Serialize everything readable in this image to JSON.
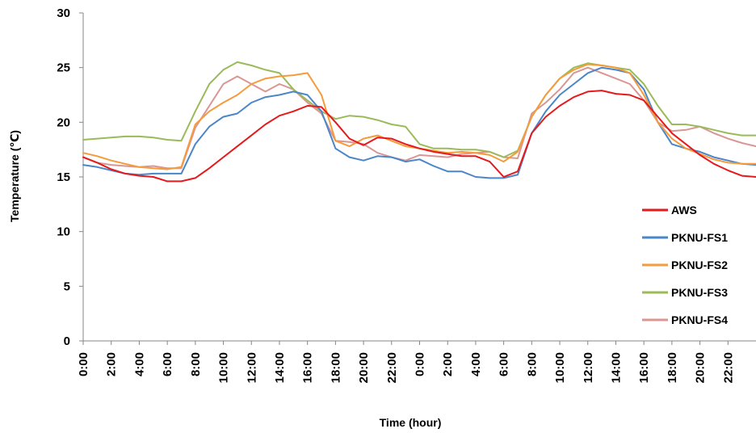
{
  "chart_data": {
    "type": "line",
    "title": "",
    "xlabel": "Time (hour)",
    "ylabel": "Temperature (℃)",
    "ylim": [
      0,
      30
    ],
    "yticks": [
      0,
      5,
      10,
      15,
      20,
      25,
      30
    ],
    "x_tick_labels": [
      "0:00",
      "2:00",
      "4:00",
      "6:00",
      "8:00",
      "10:00",
      "12:00",
      "14:00",
      "16:00",
      "18:00",
      "20:00",
      "22:00",
      "0:00",
      "2:00",
      "4:00",
      "6:00",
      "8:00",
      "10:00",
      "12:00",
      "14:00",
      "16:00",
      "18:00",
      "20:00",
      "22:00"
    ],
    "x_hours": [
      0,
      1,
      2,
      3,
      4,
      5,
      6,
      7,
      8,
      9,
      10,
      11,
      12,
      13,
      14,
      15,
      16,
      17,
      18,
      19,
      20,
      21,
      22,
      23,
      24,
      25,
      26,
      27,
      28,
      29,
      30,
      31,
      32,
      33,
      34,
      35,
      36,
      37,
      38,
      39,
      40,
      41,
      42,
      43,
      44,
      45,
      46,
      47,
      48
    ],
    "xlim": [
      0,
      48
    ],
    "grid": false,
    "legend_position": "right",
    "series": [
      {
        "name": "AWS",
        "color": "#e41a1c",
        "values": [
          16.8,
          16.3,
          15.7,
          15.3,
          15.1,
          15.0,
          14.6,
          14.6,
          14.9,
          15.8,
          16.8,
          17.8,
          18.8,
          19.8,
          20.6,
          21.0,
          21.5,
          21.4,
          20.0,
          18.5,
          17.9,
          18.6,
          18.5,
          18.0,
          17.6,
          17.3,
          17.1,
          16.9,
          16.9,
          16.4,
          15.0,
          15.5,
          19.0,
          20.5,
          21.5,
          22.3,
          22.8,
          22.9,
          22.6,
          22.5,
          22.0,
          20.5,
          19.0,
          18.0,
          17.0,
          16.2,
          15.6,
          15.1,
          15.0
        ]
      },
      {
        "name": "PKNU-FS1",
        "color": "#4a86c8",
        "values": [
          16.1,
          15.9,
          15.6,
          15.3,
          15.2,
          15.3,
          15.3,
          15.3,
          18.0,
          19.6,
          20.5,
          20.8,
          21.8,
          22.3,
          22.5,
          22.8,
          22.5,
          21.0,
          17.6,
          16.8,
          16.5,
          16.9,
          16.8,
          16.4,
          16.6,
          16.0,
          15.5,
          15.5,
          15.0,
          14.9,
          14.9,
          15.2,
          19.0,
          21.0,
          22.5,
          23.5,
          24.5,
          25.0,
          24.8,
          24.5,
          23.0,
          20.0,
          18.0,
          17.6,
          17.3,
          16.8,
          16.5,
          16.2,
          16.1
        ]
      },
      {
        "name": "PKNU-FS2",
        "color": "#f59b3c",
        "values": [
          17.2,
          16.9,
          16.5,
          16.2,
          15.9,
          15.8,
          15.7,
          15.9,
          19.8,
          21.0,
          21.8,
          22.5,
          23.5,
          24.0,
          24.2,
          24.3,
          24.5,
          22.5,
          18.3,
          17.8,
          18.5,
          18.8,
          18.3,
          17.8,
          17.6,
          17.4,
          17.2,
          17.3,
          17.2,
          17.0,
          16.4,
          17.3,
          20.5,
          22.5,
          24.0,
          24.8,
          25.3,
          25.2,
          25.0,
          24.5,
          22.5,
          20.0,
          18.5,
          17.6,
          17.1,
          16.6,
          16.3,
          16.2,
          16.2
        ]
      },
      {
        "name": "PKNU-FS3",
        "color": "#9bbb59",
        "values": [
          18.4,
          18.5,
          18.6,
          18.7,
          18.7,
          18.6,
          18.4,
          18.3,
          21.0,
          23.5,
          24.8,
          25.5,
          25.2,
          24.8,
          24.5,
          23.0,
          22.0,
          21.0,
          20.3,
          20.6,
          20.5,
          20.2,
          19.8,
          19.6,
          18.0,
          17.6,
          17.6,
          17.5,
          17.5,
          17.3,
          16.8,
          17.4,
          20.5,
          22.5,
          24.0,
          25.0,
          25.4,
          25.2,
          25.0,
          24.8,
          23.5,
          21.5,
          19.8,
          19.8,
          19.6,
          19.3,
          19.0,
          18.8,
          18.8
        ]
      },
      {
        "name": "PKNU-FS4",
        "color": "#d99694",
        "values": [
          16.8,
          16.3,
          16.1,
          16.0,
          15.9,
          16.0,
          15.8,
          15.8,
          19.5,
          21.5,
          23.5,
          24.2,
          23.5,
          22.8,
          23.5,
          23.0,
          21.8,
          20.8,
          18.3,
          18.2,
          18.0,
          17.2,
          16.8,
          16.5,
          17.0,
          16.9,
          16.8,
          17.1,
          17.2,
          17.3,
          16.8,
          16.7,
          20.8,
          21.8,
          23.0,
          24.5,
          25.0,
          24.5,
          24.0,
          23.5,
          22.0,
          20.0,
          19.2,
          19.3,
          19.6,
          19.0,
          18.5,
          18.1,
          17.8
        ]
      }
    ]
  }
}
